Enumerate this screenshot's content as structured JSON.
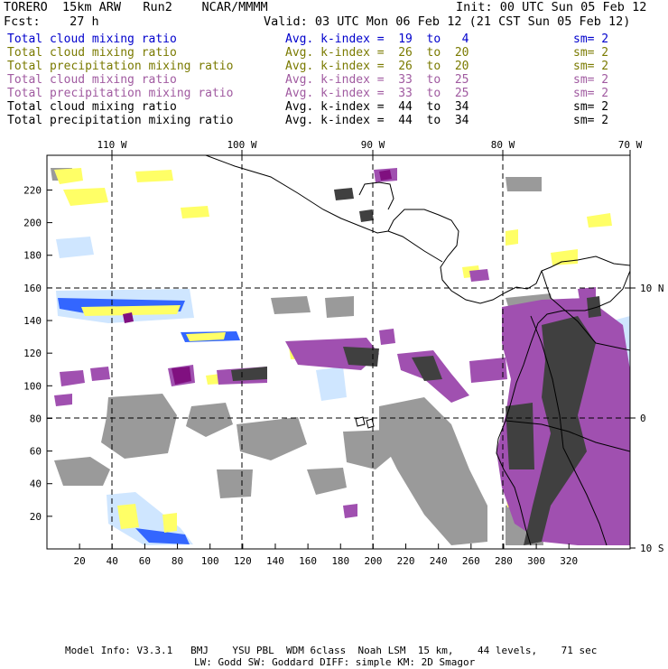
{
  "header": {
    "model": "TORERO  15km ARW   Run2    NCAR/MMMM",
    "init": "Init: 00 UTC Sun 05 Feb 12",
    "fcst": "Fcst:    27 h",
    "valid": "Valid: 03 UTC Mon 06 Feb 12 (21 CST Sun 05 Feb 12)"
  },
  "legend_rows": [
    {
      "field": "Total cloud mixing ratio",
      "kindex": "Avg. k-index =  19  to   4",
      "sm": "sm= 2",
      "color": "#0000cc"
    },
    {
      "field": "Total cloud mixing ratio",
      "kindex": "Avg. k-index =  26  to  20",
      "sm": "sm= 2",
      "color": "#7a7a00"
    },
    {
      "field": "Total precipitation mixing ratio",
      "kindex": "Avg. k-index =  26  to  20",
      "sm": "sm= 2",
      "color": "#7a7a00"
    },
    {
      "field": "Total cloud mixing ratio",
      "kindex": "Avg. k-index =  33  to  25",
      "sm": "sm= 2",
      "color": "#a05aa0"
    },
    {
      "field": "Total precipitation mixing ratio",
      "kindex": "Avg. k-index =  33  to  25",
      "sm": "sm= 2",
      "color": "#a05aa0"
    },
    {
      "field": "Total cloud mixing ratio",
      "kindex": "Avg. k-index =  44  to  34",
      "sm": "sm= 2",
      "color": "#000000"
    },
    {
      "field": "Total precipitation mixing ratio",
      "kindex": "Avg. k-index =  44  to  34",
      "sm": "sm= 2",
      "color": "#000000"
    }
  ],
  "axes": {
    "x_ticks": [
      "20",
      "40",
      "60",
      "80",
      "100",
      "120",
      "140",
      "160",
      "180",
      "200",
      "220",
      "240",
      "260",
      "280",
      "300",
      "320"
    ],
    "y_ticks": [
      "20",
      "40",
      "60",
      "80",
      "100",
      "120",
      "140",
      "160",
      "180",
      "200",
      "220"
    ],
    "lon_labels": [
      "110 W",
      "100 W",
      "90 W",
      "80 W",
      "70 W"
    ],
    "lat_labels": [
      "10 N",
      "0",
      "10 S"
    ]
  },
  "colors": {
    "yellow": "#ffff66",
    "light_blue": "#cfe6ff",
    "blue": "#3366ff",
    "dark_blue": "#0000cc",
    "purple": "#a050b0",
    "dark_purple": "#801080",
    "gray": "#9a9a9a",
    "dark_gray": "#404040"
  },
  "footer": {
    "line1": "Model Info: V3.3.1   BMJ    YSU PBL  WDM 6class  Noah LSM  15 km,    44 levels,    71 sec",
    "line2": "LW: Godd SW: Goddard DIFF: simple KM: 2D Smagor"
  }
}
